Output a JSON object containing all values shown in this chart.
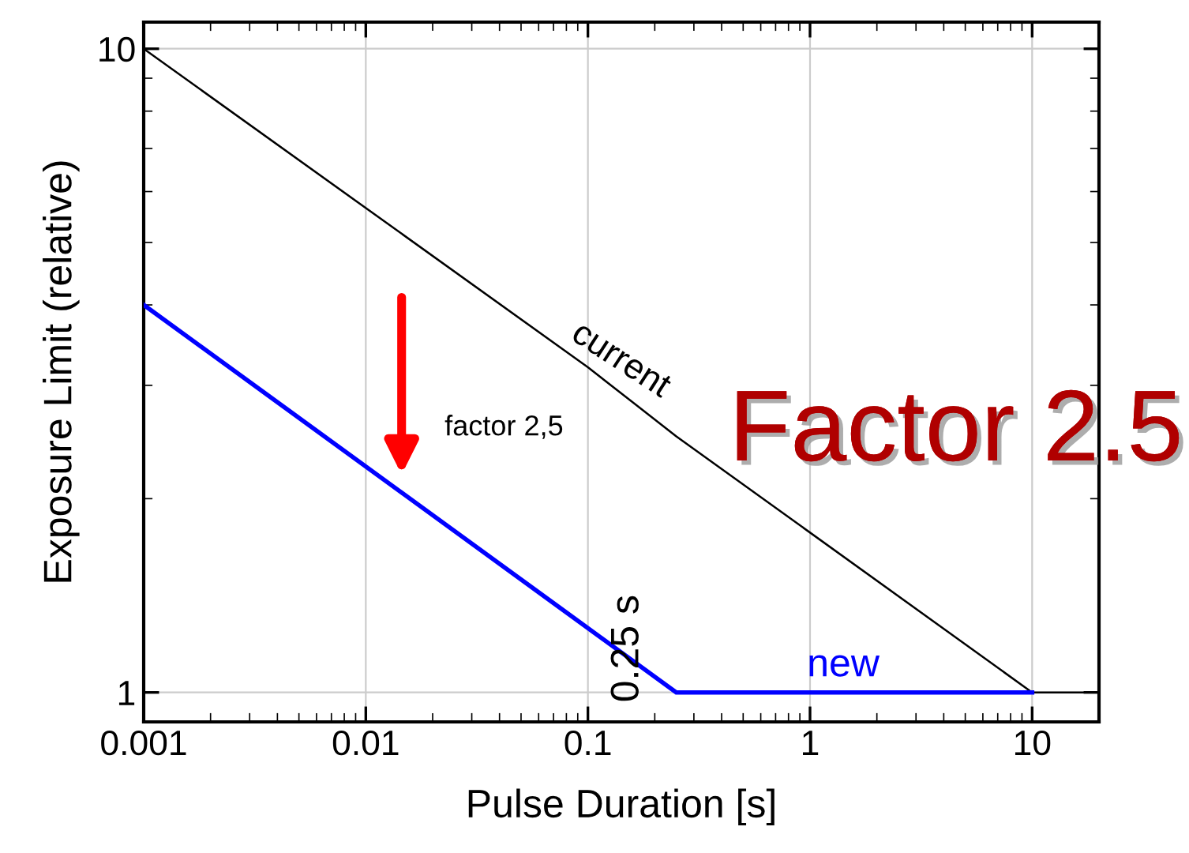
{
  "chart_data": {
    "type": "line",
    "xlabel": "Pulse Duration [s]",
    "ylabel": "Exposure Limit (relative)",
    "log": "xy",
    "xlim": [
      0.001,
      20
    ],
    "xticks": [
      0.001,
      0.01,
      0.1,
      1,
      10
    ],
    "ylim": [
      0.9,
      11
    ],
    "yticks": [
      1,
      10
    ],
    "grid": true,
    "line_style": "solid",
    "series": [
      {
        "name": "current",
        "color": "#000000",
        "x": [
          0.001,
          0.1,
          0.25,
          10,
          20
        ],
        "values": [
          10,
          3.2,
          2.5,
          1,
          1
        ]
      },
      {
        "name": "new",
        "color": "#0000ff",
        "x": [
          0.001,
          0.25,
          10
        ],
        "values": [
          4.0,
          1,
          1
        ]
      }
    ],
    "annotations": [
      {
        "text": "0.25 s",
        "x": 0.25,
        "y": 1
      },
      "factor 2,5",
      "Factor 2.5"
    ]
  }
}
